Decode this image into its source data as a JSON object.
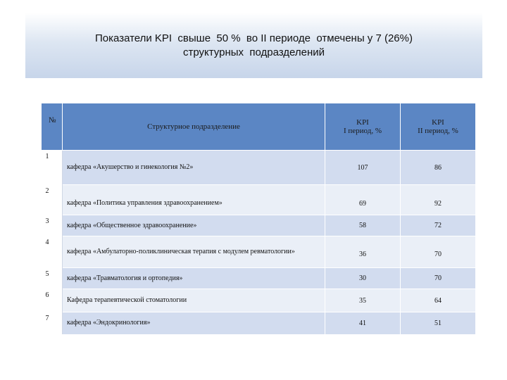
{
  "title": {
    "line1": "Показатели KPI  свыше  50 %  во II периоде  отмечены у 7 (26%)",
    "line2": "структурных  подразделений"
  },
  "table": {
    "headers": {
      "num": "№",
      "unit": "Структурное подразделение",
      "kpi1_top": "KPI",
      "kpi1_bottom": "I период,  %",
      "kpi2_top": "KPI",
      "kpi2_bottom": "II период, %"
    },
    "rows": [
      {
        "num": "1",
        "name": "кафедра «Акушерство и гинекология №2»",
        "kpi1": "107",
        "kpi2": "86"
      },
      {
        "num": "2",
        "name": "кафедра «Политика управления здравоохранением»",
        "kpi1": "69",
        "kpi2": "92"
      },
      {
        "num": "3",
        "name": "кафедра «Общественное здравоохранение»",
        "kpi1": "58",
        "kpi2": "72"
      },
      {
        "num": "4",
        "name": "кафедра «Амбулаторно-поликлиническая терапия с модулем ревматологии»",
        "kpi1": "36",
        "kpi2": "70"
      },
      {
        "num": "5",
        "name": "кафедра «Травматология и ортопедия»",
        "kpi1": "30",
        "kpi2": "70"
      },
      {
        "num": "6",
        "name": "Кафедра терапевтической стоматологии",
        "kpi1": "35",
        "kpi2": "64"
      },
      {
        "num": "7",
        "name": "кафедра «Эндокринология»",
        "kpi1": "41",
        "kpi2": "51"
      }
    ]
  }
}
